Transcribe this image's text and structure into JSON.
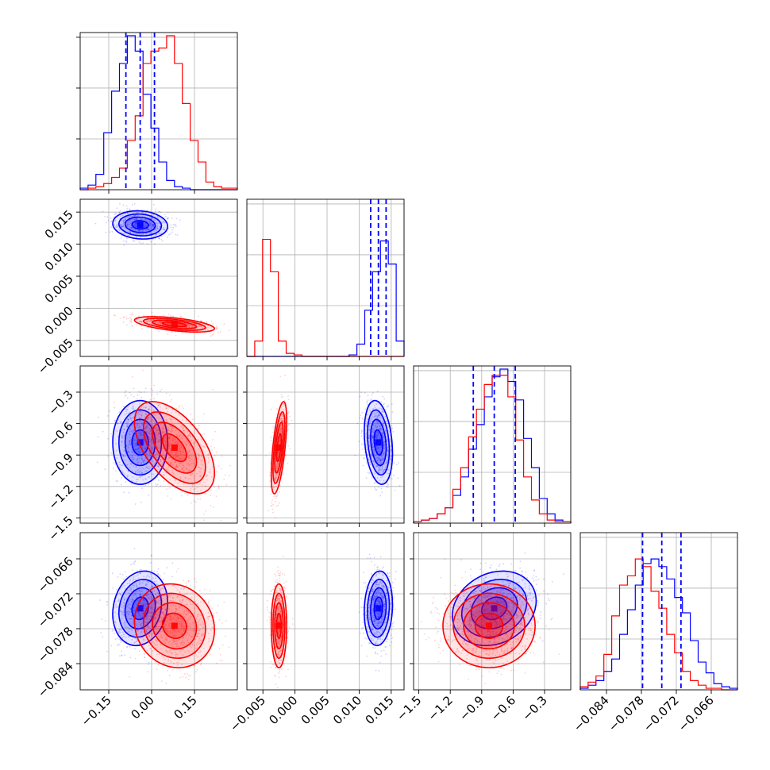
{
  "chart_data": {
    "type": "corner",
    "title": "",
    "grid": true,
    "parameters": [
      {
        "range": [
          -0.25,
          0.3
        ],
        "ticks": [
          -0.15,
          0.0,
          0.15
        ],
        "tick_labels": [
          "−0.15",
          "0.00",
          "0.15"
        ]
      },
      {
        "range": [
          -0.0075,
          0.017
        ],
        "ticks": [
          -0.005,
          0.0,
          0.005,
          0.01,
          0.015
        ],
        "tick_labels": [
          "−0.005",
          "0.000",
          "0.005",
          "0.010",
          "0.015"
        ]
      },
      {
        "range": [
          -1.55,
          -0.05
        ],
        "ticks": [
          -1.5,
          -1.2,
          -0.9,
          -0.6,
          -0.3
        ],
        "tick_labels": [
          "−1.5",
          "−1.2",
          "−0.9",
          "−0.6",
          "−0.3"
        ]
      },
      {
        "range": [
          -0.0885,
          -0.0615
        ],
        "ticks": [
          -0.084,
          -0.078,
          -0.072,
          -0.066
        ],
        "tick_labels": [
          "−0.084",
          "−0.078",
          "−0.072",
          "−0.066"
        ]
      }
    ],
    "series": [
      {
        "color": "#0000ff",
        "means": [
          -0.04,
          0.013,
          -0.78,
          -0.0745
        ],
        "sds": [
          0.048,
          0.0011,
          0.2,
          0.0032
        ],
        "quantiles": [
          [
            -0.09,
            -0.04,
            0.01
          ],
          [
            0.0118,
            0.013,
            0.0142
          ],
          [
            -0.98,
            -0.78,
            -0.58
          ],
          [
            -0.0778,
            -0.0745,
            -0.0712
          ]
        ],
        "correlations": [
          [
            0,
            1,
            2,
            3
          ],
          [
            -0.1,
            0,
            0,
            0
          ],
          [
            0.0,
            -0.25,
            0,
            0
          ],
          [
            0.15,
            0.1,
            0.2,
            0
          ]
        ],
        "hist_heights": [
          [
            0.01,
            0.03,
            0.1,
            0.37,
            0.64,
            0.82,
            1.0,
            0.9,
            0.62,
            0.4,
            0.18,
            0.06,
            0.02,
            0.01,
            0,
            0,
            0,
            0,
            0,
            0
          ],
          [
            0,
            0,
            0,
            0,
            0,
            0,
            0,
            0,
            0,
            0,
            0,
            0,
            0,
            0.01,
            0.08,
            0.3,
            0.55,
            0.75,
            0.6,
            0.1
          ],
          [
            0.01,
            0.02,
            0.03,
            0.06,
            0.1,
            0.18,
            0.3,
            0.48,
            0.64,
            0.82,
            0.95,
            1.0,
            0.92,
            0.8,
            0.55,
            0.36,
            0.16,
            0.06,
            0.02,
            0.01
          ],
          [
            0.01,
            0.03,
            0.06,
            0.12,
            0.2,
            0.36,
            0.52,
            0.68,
            0.82,
            0.85,
            0.8,
            0.72,
            0.6,
            0.5,
            0.32,
            0.18,
            0.11,
            0.04,
            0.02,
            0.01
          ]
        ]
      },
      {
        "color": "#ff0000",
        "means": [
          0.08,
          -0.0025,
          -0.83,
          -0.0775
        ],
        "sds": [
          0.07,
          0.0006,
          0.22,
          0.0036
        ],
        "quantiles": null,
        "correlations": [
          [
            0,
            1,
            2,
            3
          ],
          [
            -0.55,
            0,
            0,
            0
          ],
          [
            -0.55,
            0.6,
            0,
            0
          ],
          [
            -0.1,
            0,
            0.0,
            0
          ]
        ],
        "hist_heights": [
          [
            0,
            0.01,
            0.02,
            0.04,
            0.08,
            0.14,
            0.32,
            0.48,
            0.82,
            0.9,
            0.92,
            1.0,
            0.82,
            0.56,
            0.32,
            0.18,
            0.05,
            0.02,
            0.01,
            0.01
          ],
          [
            0,
            0.1,
            0.76,
            0.55,
            0.1,
            0.02,
            0.01,
            0,
            0,
            0,
            0,
            0,
            0,
            0,
            0,
            0,
            0,
            0,
            0,
            0
          ],
          [
            0.01,
            0.02,
            0.03,
            0.06,
            0.1,
            0.22,
            0.36,
            0.56,
            0.74,
            0.9,
            0.96,
            0.96,
            0.82,
            0.54,
            0.3,
            0.15,
            0.06,
            0.02,
            0.01,
            0.01
          ],
          [
            0.02,
            0.05,
            0.09,
            0.23,
            0.48,
            0.68,
            0.74,
            0.85,
            0.8,
            0.64,
            0.53,
            0.36,
            0.24,
            0.12,
            0.06,
            0.03,
            0.01,
            0.01,
            0,
            0
          ]
        ]
      }
    ]
  }
}
